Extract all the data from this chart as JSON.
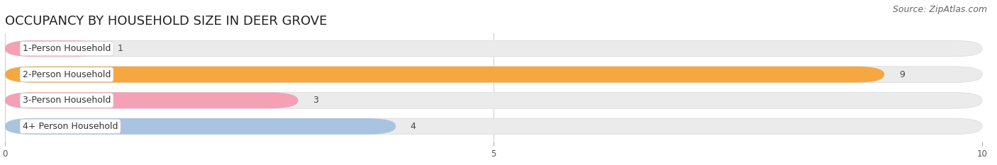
{
  "title": "OCCUPANCY BY HOUSEHOLD SIZE IN DEER GROVE",
  "source": "Source: ZipAtlas.com",
  "categories": [
    "1-Person Household",
    "2-Person Household",
    "3-Person Household",
    "4+ Person Household"
  ],
  "values": [
    1,
    9,
    3,
    4
  ],
  "bar_colors": [
    "#f4a0b5",
    "#f5a742",
    "#f4a0b5",
    "#a8c4e0"
  ],
  "xlim": [
    0,
    10
  ],
  "xticks": [
    0,
    5,
    10
  ],
  "background_color": "#ffffff",
  "bar_bg_color": "#ebebeb",
  "title_fontsize": 13,
  "source_fontsize": 9,
  "label_fontsize": 9,
  "value_fontsize": 9,
  "bar_height": 0.62,
  "bar_spacing": 1.0
}
